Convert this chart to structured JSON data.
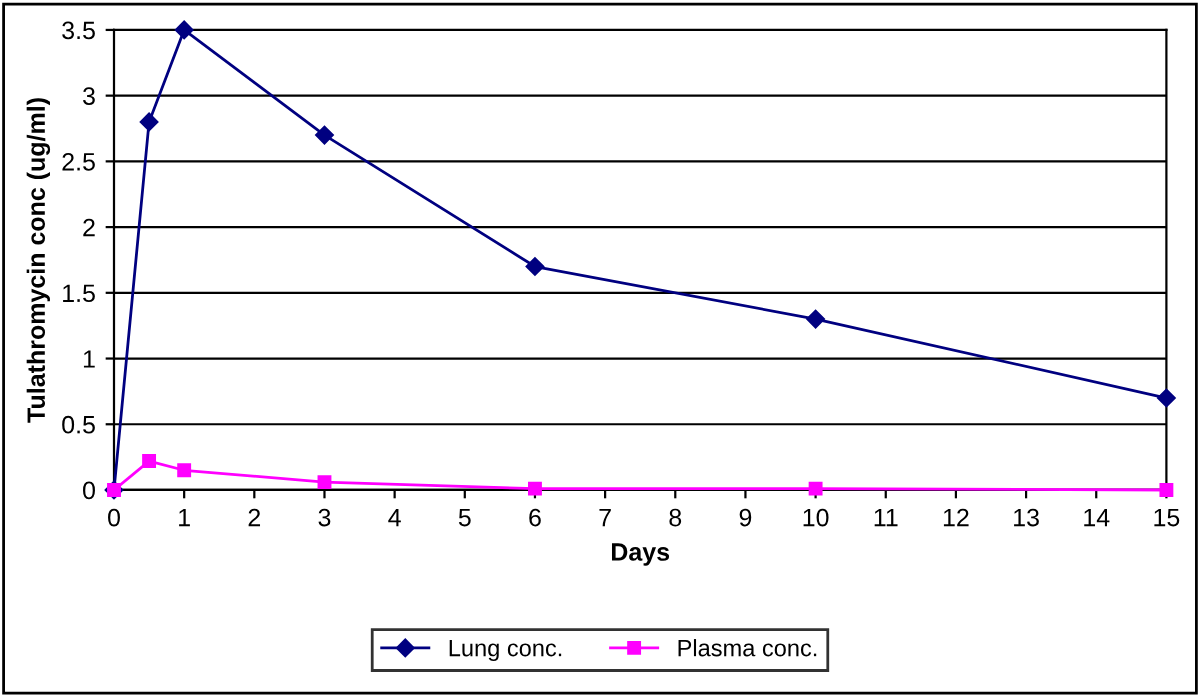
{
  "chart_data": {
    "type": "line",
    "xlabel": "Days",
    "ylabel": "Tulathromycin conc (ug/ml)",
    "x": [
      0,
      0.5,
      1,
      3,
      6,
      10,
      15
    ],
    "series": [
      {
        "name": "Lung conc.",
        "color": "#000080",
        "marker": "diamond",
        "values": [
          0,
          2.8,
          3.5,
          2.7,
          1.7,
          1.3,
          0.7
        ]
      },
      {
        "name": "Plasma conc.",
        "color": "#ff00ff",
        "marker": "square",
        "values": [
          0,
          0.22,
          0.15,
          0.06,
          0.01,
          0.01,
          0
        ]
      }
    ],
    "xlim": [
      0,
      15
    ],
    "xticks": [
      0,
      1,
      2,
      3,
      4,
      5,
      6,
      7,
      8,
      9,
      10,
      11,
      12,
      13,
      14,
      15
    ],
    "ylim": [
      0,
      3.5
    ],
    "yticks": [
      0,
      0.5,
      1,
      1.5,
      2,
      2.5,
      3,
      3.5
    ],
    "grid": "y",
    "legend": "bottom",
    "line_style": "solid"
  }
}
